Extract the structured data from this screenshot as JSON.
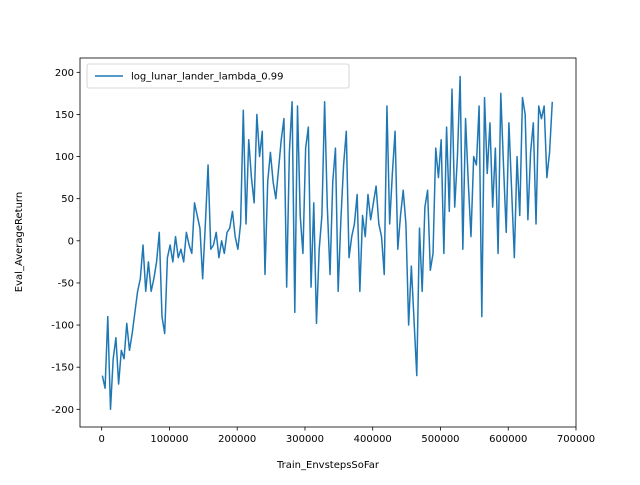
{
  "chart_data": {
    "type": "line",
    "xlabel": "Train_EnvstepsSoFar",
    "ylabel": "Eval_AverageReturn",
    "x": [
      1000,
      5000,
      9000,
      13000,
      17000,
      21000,
      25000,
      29000,
      33000,
      37000,
      41000,
      45000,
      49000,
      53000,
      57000,
      61000,
      65000,
      69000,
      73000,
      77000,
      81000,
      85000,
      89000,
      93000,
      97000,
      101000,
      105000,
      109000,
      113000,
      117000,
      121000,
      125000,
      129000,
      133000,
      137000,
      141000,
      145000,
      149000,
      153000,
      157000,
      161000,
      165000,
      169000,
      173000,
      177000,
      181000,
      185000,
      189000,
      193000,
      197000,
      201000,
      205000,
      209000,
      213000,
      217000,
      221000,
      225000,
      229000,
      233000,
      237000,
      241000,
      245000,
      249000,
      253000,
      257000,
      261000,
      265000,
      269000,
      273000,
      277000,
      281000,
      285000,
      289000,
      293000,
      297000,
      301000,
      305000,
      309000,
      313000,
      317000,
      321000,
      325000,
      329000,
      333000,
      337000,
      341000,
      345000,
      349000,
      353000,
      357000,
      361000,
      365000,
      369000,
      373000,
      377000,
      381000,
      385000,
      389000,
      393000,
      397000,
      401000,
      405000,
      409000,
      413000,
      417000,
      421000,
      425000,
      429000,
      433000,
      437000,
      441000,
      445000,
      449000,
      453000,
      457000,
      461000,
      465000,
      469000,
      473000,
      477000,
      481000,
      485000,
      489000,
      493000,
      497000,
      501000,
      505000,
      509000,
      513000,
      517000,
      521000,
      525000,
      529000,
      533000,
      537000,
      541000,
      545000,
      549000,
      553000,
      557000,
      561000,
      565000,
      569000,
      573000,
      577000,
      581000,
      585000,
      589000,
      593000,
      597000,
      601000,
      605000,
      609000,
      613000,
      617000,
      621000,
      625000,
      629000,
      633000,
      637000,
      641000,
      645000,
      649000,
      653000,
      657000,
      661000,
      665000
    ],
    "series": [
      {
        "name": "log_lunar_lander_lambda_0.99",
        "color": "#1f77b4",
        "values": [
          -160,
          -175,
          -90,
          -200,
          -140,
          -115,
          -170,
          -130,
          -140,
          -98,
          -130,
          -110,
          -85,
          -60,
          -45,
          -5,
          -60,
          -25,
          -60,
          -45,
          -25,
          10,
          -90,
          -110,
          -20,
          -5,
          -25,
          5,
          -20,
          -10,
          -25,
          10,
          -5,
          -15,
          45,
          30,
          15,
          -45,
          20,
          90,
          -10,
          -5,
          10,
          -20,
          0,
          -15,
          10,
          15,
          35,
          5,
          -10,
          20,
          155,
          20,
          120,
          75,
          45,
          150,
          100,
          130,
          -40,
          70,
          105,
          70,
          50,
          85,
          120,
          145,
          -55,
          105,
          165,
          -85,
          160,
          30,
          -15,
          110,
          135,
          -55,
          45,
          -98,
          -10,
          30,
          165,
          40,
          -40,
          70,
          110,
          -60,
          25,
          90,
          130,
          -20,
          5,
          20,
          55,
          -60,
          30,
          5,
          55,
          25,
          45,
          65,
          20,
          5,
          -40,
          160,
          20,
          80,
          130,
          -10,
          30,
          60,
          20,
          -100,
          -30,
          -95,
          -160,
          15,
          -60,
          40,
          60,
          -35,
          -15,
          110,
          75,
          120,
          -15,
          135,
          35,
          180,
          40,
          100,
          195,
          -10,
          145,
          70,
          5,
          100,
          90,
          160,
          -90,
          170,
          80,
          140,
          40,
          110,
          -15,
          175,
          90,
          10,
          140,
          60,
          -20,
          100,
          30,
          170,
          150,
          25,
          105,
          140,
          20,
          160,
          145,
          160,
          75,
          105,
          165
        ]
      }
    ],
    "xlim": [
      -32000,
      700000
    ],
    "ylim": [
      -221,
      217
    ],
    "xticks": [
      0,
      100000,
      200000,
      300000,
      400000,
      500000,
      600000,
      700000
    ],
    "yticks": [
      -200,
      -150,
      -100,
      -50,
      0,
      50,
      100,
      150,
      200
    ],
    "legend": "upper left"
  }
}
